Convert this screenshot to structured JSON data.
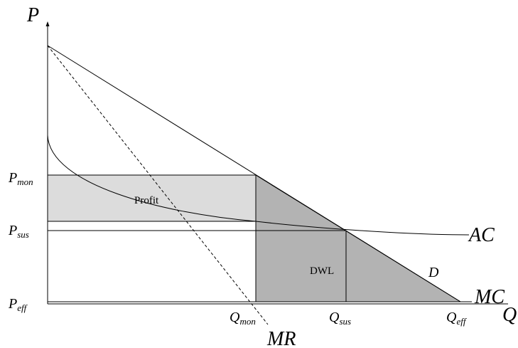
{
  "axes": {
    "y_label": "P",
    "x_label": "Q"
  },
  "price_levels": {
    "mon": {
      "base": "P",
      "sub": "mon"
    },
    "sus": {
      "base": "P",
      "sub": "sus"
    },
    "eff": {
      "base": "P",
      "sub": "eff"
    }
  },
  "quantity_levels": {
    "mon": {
      "base": "Q",
      "sub": "mon"
    },
    "sus": {
      "base": "Q",
      "sub": "sus"
    },
    "eff": {
      "base": "Q",
      "sub": "eff"
    }
  },
  "curves": {
    "demand": "D",
    "marginal_revenue": "MR",
    "average_cost": "AC",
    "marginal_cost": "MC"
  },
  "regions": {
    "profit": "Profit",
    "deadweight_loss": "DWL"
  },
  "colors": {
    "profit_fill": "#dcdcdc",
    "dwl_fill": "#b3b3b3",
    "line": "#000000"
  }
}
